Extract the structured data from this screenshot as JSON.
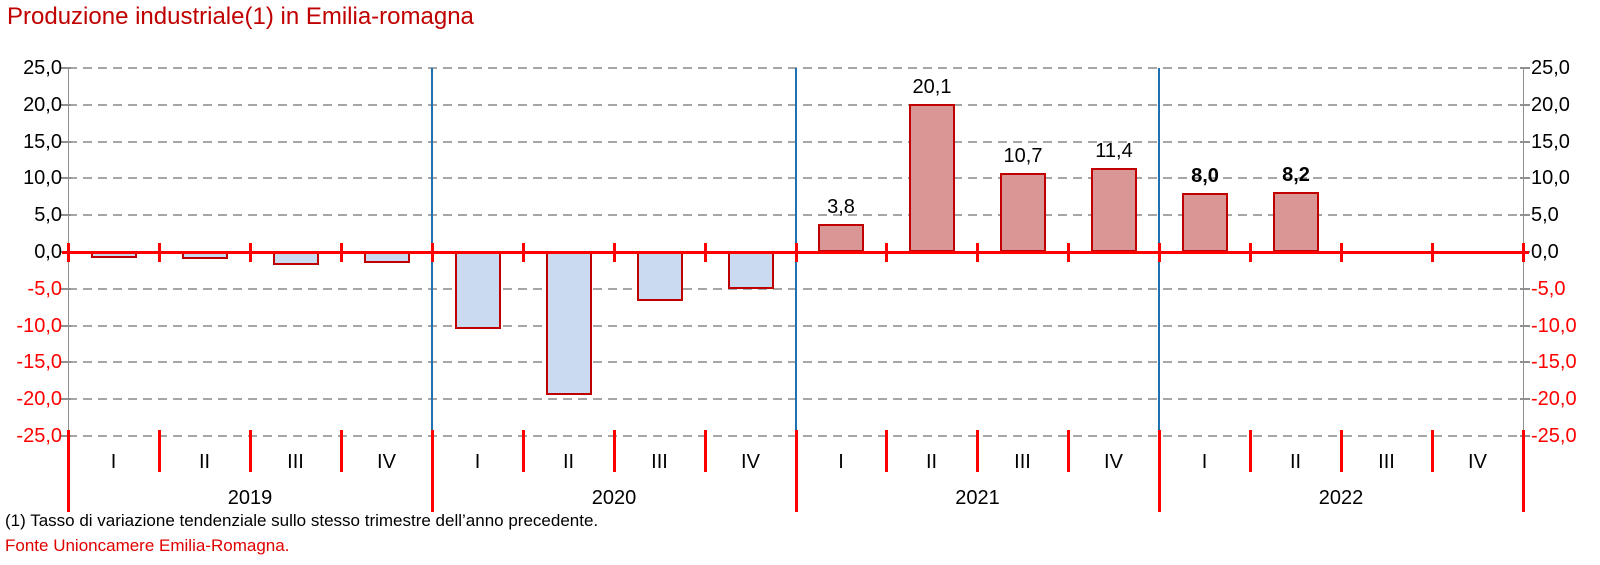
{
  "title": "Produzione industriale(1) in Emilia-romagna",
  "footnote": "(1) Tasso di variazione tendenziale sullo stesso trimestre dell’anno precedente.",
  "source": "Fonte Unioncamere Emilia-Romagna.",
  "colors": {
    "title": "#C00000",
    "source": "#E00000",
    "positive_bar_fill": "#D99694",
    "negative_bar_fill": "#C9DAF1",
    "bar_border": "#C00000",
    "zero_line": "#FF0000",
    "tick_marks": "#FF0000",
    "year_separator": "#1F71B4",
    "gridline": "#A6A6A6",
    "axis_line": "#909090",
    "positive_tick_label": "#000000",
    "negative_tick_label": "#FF0000"
  },
  "chart_data": {
    "type": "bar",
    "title": "Produzione industriale(1) in Emilia-romagna",
    "xlabel": "",
    "ylabel": "",
    "ylim": [
      -25,
      25
    ],
    "ytick_step": 5,
    "grid": true,
    "decimal_separator": ",",
    "y_ticks": [
      {
        "value": 25,
        "label": "25,0"
      },
      {
        "value": 20,
        "label": "20,0"
      },
      {
        "value": 15,
        "label": "15,0"
      },
      {
        "value": 10,
        "label": "10,0"
      },
      {
        "value": 5,
        "label": "5,0"
      },
      {
        "value": 0,
        "label": "0,0"
      },
      {
        "value": -5,
        "label": "-5,0"
      },
      {
        "value": -10,
        "label": "-10,0"
      },
      {
        "value": -15,
        "label": "-15,0"
      },
      {
        "value": -20,
        "label": "-20,0"
      },
      {
        "value": -25,
        "label": "-25,0"
      }
    ],
    "years": [
      {
        "label": "2019",
        "quarters": [
          "I",
          "II",
          "III",
          "IV"
        ],
        "values": [
          -0.8,
          -0.9,
          -1.8,
          -1.5
        ],
        "value_labels": [
          null,
          null,
          null,
          null
        ],
        "labels_bold": false
      },
      {
        "label": "2020",
        "quarters": [
          "I",
          "II",
          "III",
          "IV"
        ],
        "values": [
          -10.5,
          -19.4,
          -6.6,
          -5.0
        ],
        "value_labels": [
          null,
          null,
          null,
          null
        ],
        "labels_bold": false
      },
      {
        "label": "2021",
        "quarters": [
          "I",
          "II",
          "III",
          "IV"
        ],
        "values": [
          3.8,
          20.1,
          10.7,
          11.4
        ],
        "value_labels": [
          "3,8",
          "20,1",
          "10,7",
          "11,4"
        ],
        "labels_bold": false
      },
      {
        "label": "2022",
        "quarters": [
          "I",
          "II",
          "III",
          "IV"
        ],
        "values": [
          8.0,
          8.2,
          null,
          null
        ],
        "value_labels": [
          "8,0",
          "8,2",
          null,
          null
        ],
        "labels_bold": true
      }
    ]
  }
}
